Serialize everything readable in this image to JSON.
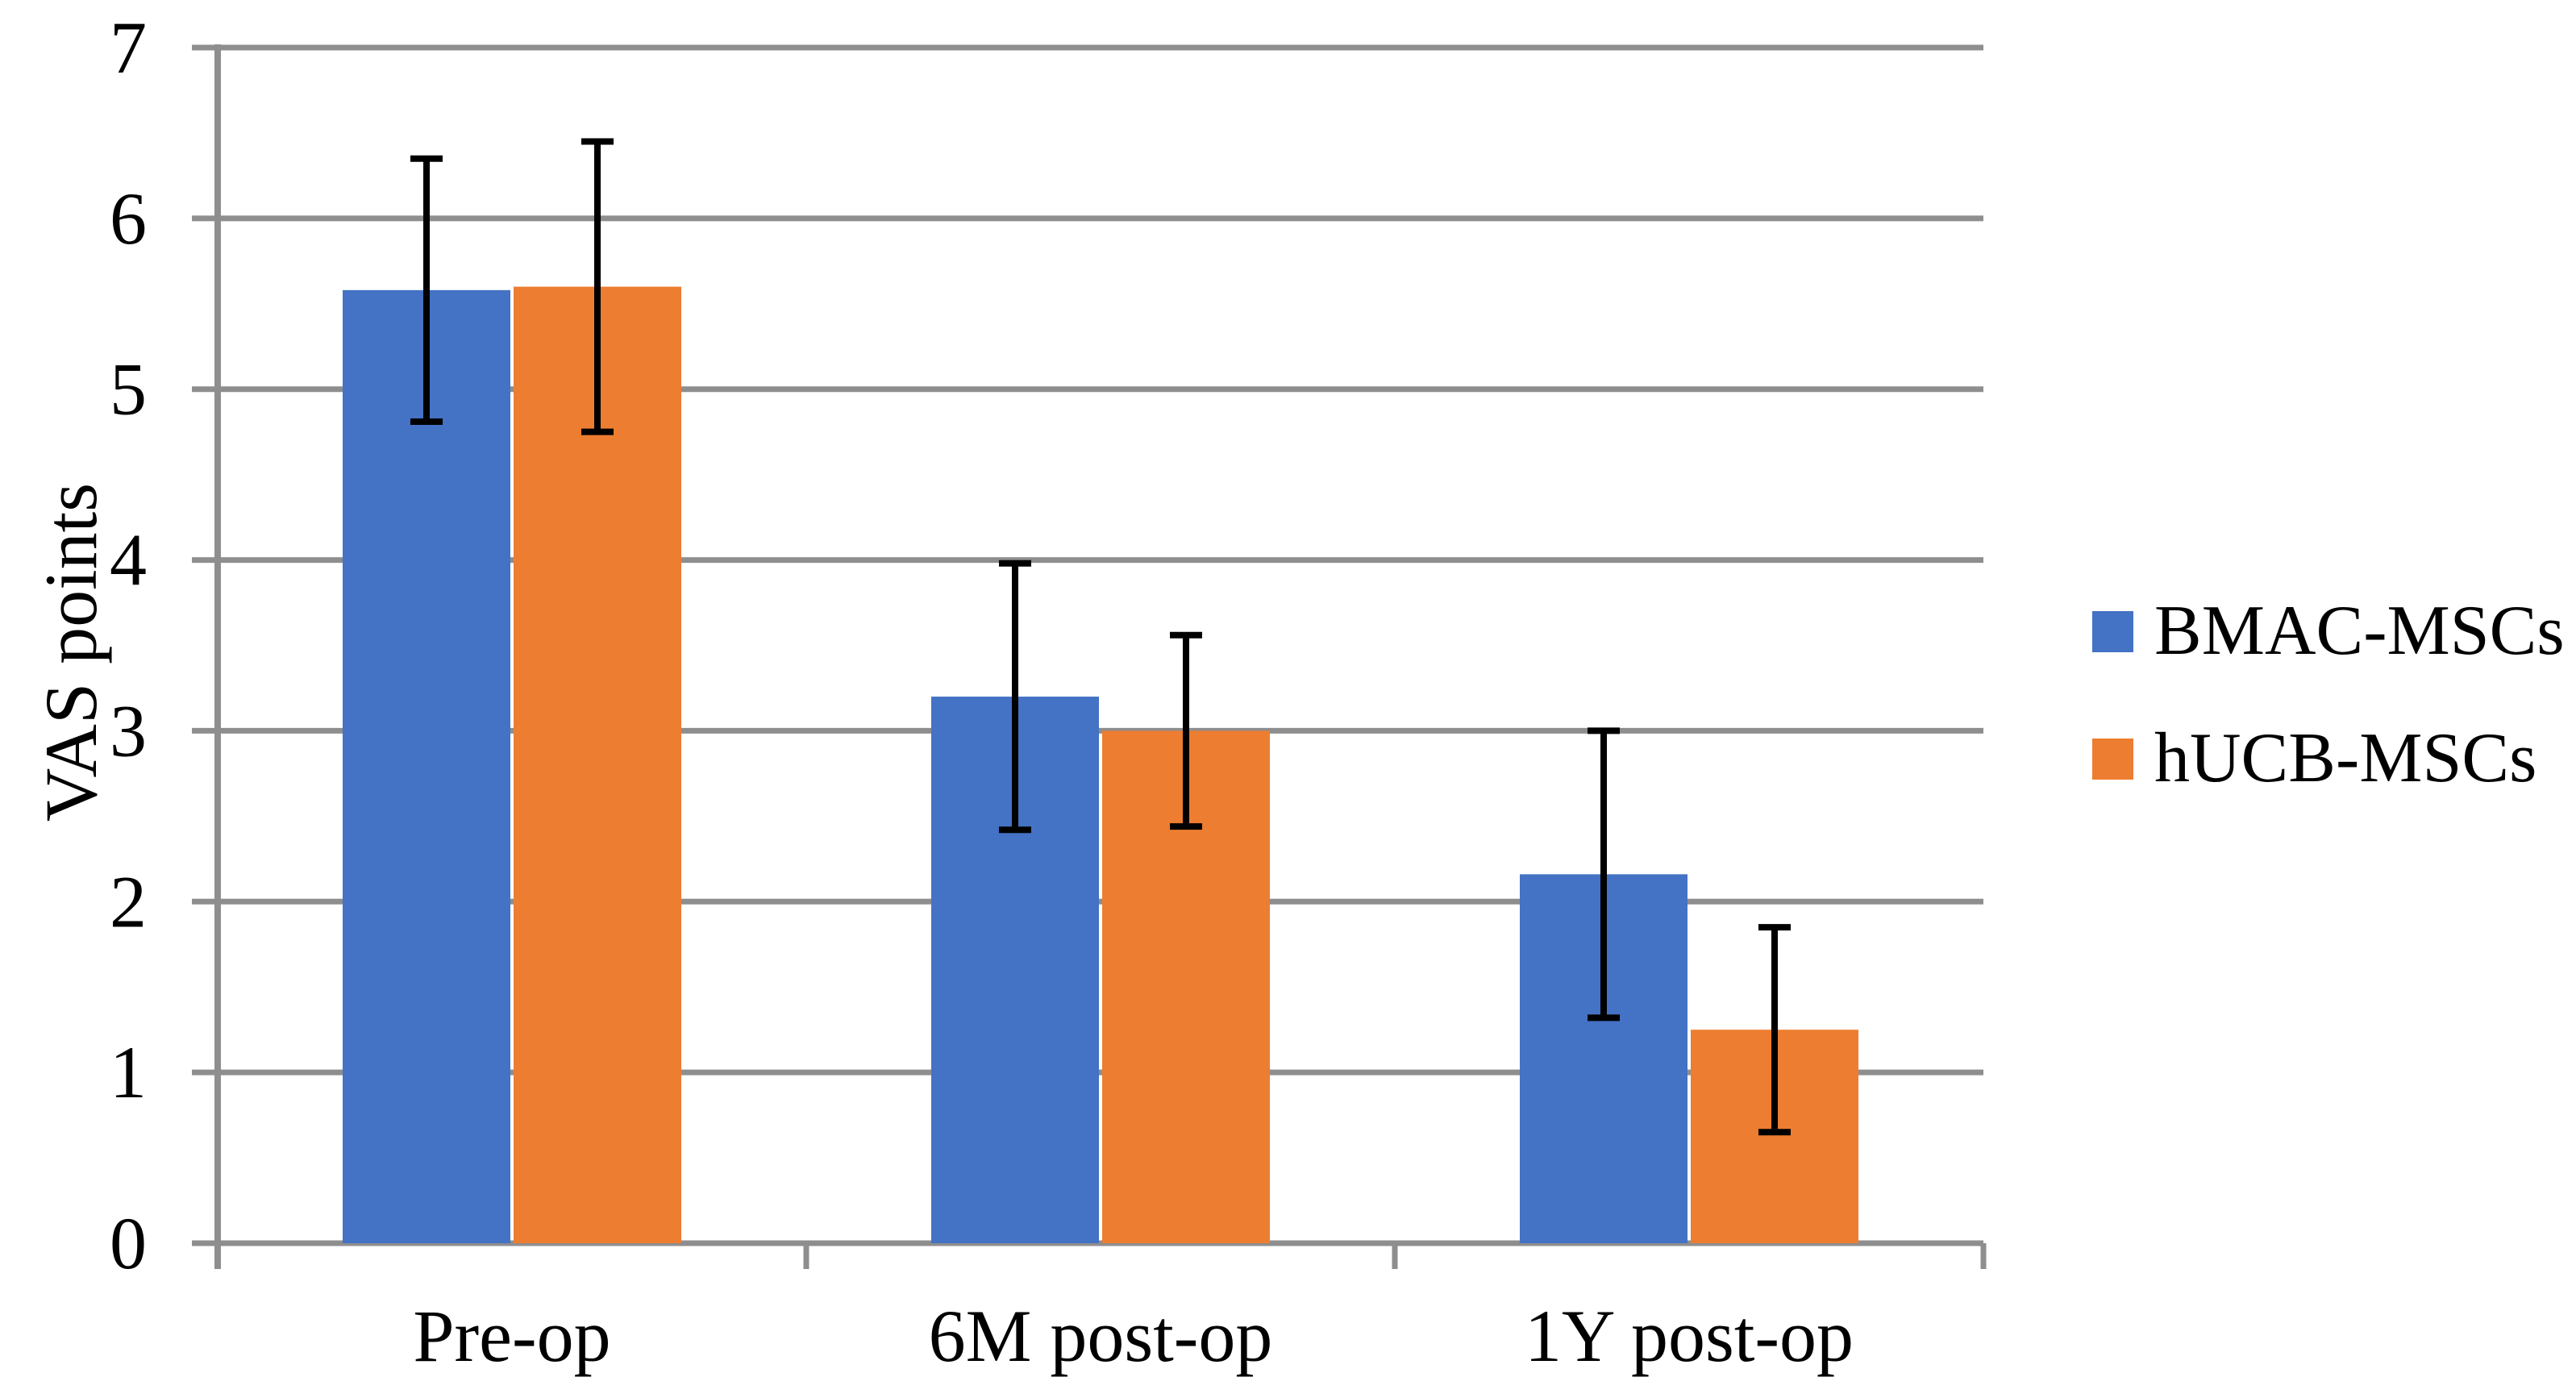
{
  "chart_data": {
    "type": "bar",
    "title": "",
    "ylabel": "VAS points",
    "xlabel": "",
    "ylim": [
      0,
      7
    ],
    "ytick_step": 1,
    "yticks": [
      0,
      1,
      2,
      3,
      4,
      5,
      6,
      7
    ],
    "grid": true,
    "legend_position": "right-middle",
    "categories": [
      "Pre-op",
      "6M post-op",
      "1Y post-op"
    ],
    "series": [
      {
        "name": "BMAC-MSCs",
        "color": "#4472C4",
        "values": [
          5.58,
          3.2,
          2.16
        ],
        "error_plus": [
          0.77,
          0.78,
          0.84
        ],
        "error_minus": [
          0.77,
          0.78,
          0.84
        ]
      },
      {
        "name": "hUCB-MSCs",
        "color": "#ED7D31",
        "values": [
          5.6,
          3.0,
          1.25
        ],
        "error_plus": [
          0.85,
          0.56,
          0.6
        ],
        "error_minus": [
          0.85,
          0.56,
          0.6
        ]
      }
    ],
    "error_bar_color": "#000000",
    "gridline_color": "#8e8e8e",
    "axis_color": "#8e8e8e",
    "text_color": "#000000",
    "background": "#ffffff"
  }
}
